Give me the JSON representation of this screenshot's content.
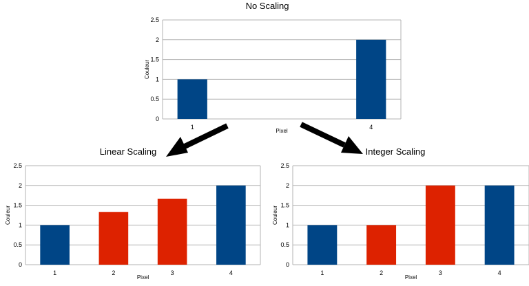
{
  "colors": {
    "blue": "#004586",
    "red": "#dd2200",
    "grid": "#b3b3b3",
    "arrow": "#000000"
  },
  "chart_data": [
    {
      "type": "bar",
      "title": "No Scaling",
      "xlabel": "Pixel",
      "ylabel": "Couleur",
      "categories": [
        "1",
        "",
        "",
        "4"
      ],
      "values": [
        1,
        null,
        null,
        2
      ],
      "bar_colors": [
        "blue",
        null,
        null,
        "blue"
      ],
      "ylim": [
        0,
        2.5
      ],
      "yticks": [
        "0",
        "0.5",
        "1",
        "1.5",
        "2",
        "2.5"
      ],
      "grid": true
    },
    {
      "type": "bar",
      "title": "Linear Scaling",
      "xlabel": "Pixel",
      "ylabel": "Couleur",
      "categories": [
        "1",
        "2",
        "3",
        "4"
      ],
      "values": [
        1,
        1.333,
        1.667,
        2
      ],
      "bar_colors": [
        "blue",
        "red",
        "red",
        "blue"
      ],
      "ylim": [
        0,
        2.5
      ],
      "yticks": [
        "0",
        "0.5",
        "1",
        "1.5",
        "2",
        "2.5"
      ],
      "grid": true
    },
    {
      "type": "bar",
      "title": "Integer Scaling",
      "xlabel": "Pixel",
      "ylabel": "Couleur",
      "categories": [
        "1",
        "2",
        "3",
        "4"
      ],
      "values": [
        1,
        1,
        2,
        2
      ],
      "bar_colors": [
        "blue",
        "red",
        "red",
        "blue"
      ],
      "ylim": [
        0,
        2.5
      ],
      "yticks": [
        "0",
        "0.5",
        "1",
        "1.5",
        "2",
        "2.5"
      ],
      "grid": true
    }
  ]
}
